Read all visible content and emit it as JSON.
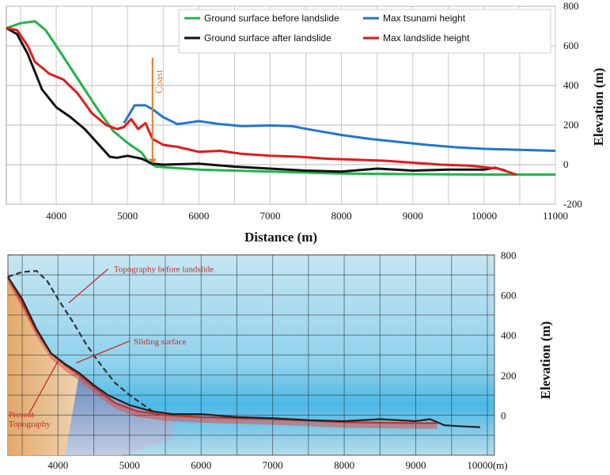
{
  "chart_data": [
    {
      "type": "line",
      "xlabel": "Distance (m)",
      "ylabel": "Elevation (m)",
      "xlim": [
        3300,
        11000
      ],
      "ylim": [
        -200,
        800
      ],
      "x_ticks": [
        4000,
        5000,
        6000,
        7000,
        8000,
        9000,
        10000,
        11000
      ],
      "y_ticks": [
        800,
        600,
        400,
        200,
        0,
        -200
      ],
      "grid": true,
      "legend_position": "top-right",
      "annotations": [
        {
          "text": "Coast",
          "x": 5350
        }
      ],
      "series": [
        {
          "name": "Ground surface before landslide",
          "color": "#22b34a",
          "points": [
            [
              3300,
              690
            ],
            [
              3500,
              715
            ],
            [
              3700,
              725
            ],
            [
              3850,
              680
            ],
            [
              4000,
              600
            ],
            [
              4200,
              490
            ],
            [
              4400,
              380
            ],
            [
              4600,
              270
            ],
            [
              4800,
              170
            ],
            [
              5000,
              110
            ],
            [
              5200,
              60
            ],
            [
              5300,
              10
            ],
            [
              5400,
              -10
            ],
            [
              6000,
              -25
            ],
            [
              7000,
              -35
            ],
            [
              8000,
              -45
            ],
            [
              9000,
              -48
            ],
            [
              10000,
              -50
            ],
            [
              11000,
              -50
            ]
          ]
        },
        {
          "name": "Max tsunami height",
          "color": "#2277c9",
          "points": [
            [
              4950,
              210
            ],
            [
              5100,
              300
            ],
            [
              5250,
              300
            ],
            [
              5350,
              280
            ],
            [
              5500,
              240
            ],
            [
              5700,
              205
            ],
            [
              6000,
              220
            ],
            [
              6300,
              205
            ],
            [
              6600,
              195
            ],
            [
              7000,
              198
            ],
            [
              7300,
              195
            ],
            [
              7600,
              175
            ],
            [
              8000,
              150
            ],
            [
              8400,
              130
            ],
            [
              8800,
              115
            ],
            [
              9200,
              100
            ],
            [
              9600,
              88
            ],
            [
              10000,
              80
            ],
            [
              10500,
              75
            ],
            [
              11000,
              70
            ]
          ]
        },
        {
          "name": "Ground surface after landslide",
          "color": "#111111",
          "points": [
            [
              3300,
              690
            ],
            [
              3450,
              660
            ],
            [
              3600,
              560
            ],
            [
              3800,
              380
            ],
            [
              4000,
              290
            ],
            [
              4200,
              240
            ],
            [
              4400,
              180
            ],
            [
              4600,
              100
            ],
            [
              4750,
              40
            ],
            [
              4850,
              35
            ],
            [
              5000,
              45
            ],
            [
              5200,
              30
            ],
            [
              5350,
              5
            ],
            [
              5500,
              0
            ],
            [
              6000,
              5
            ],
            [
              6500,
              -10
            ],
            [
              7000,
              -20
            ],
            [
              7500,
              -30
            ],
            [
              8000,
              -35
            ],
            [
              8500,
              -20
            ],
            [
              9000,
              -30
            ],
            [
              9500,
              -25
            ],
            [
              10000,
              -25
            ],
            [
              10150,
              -15
            ],
            [
              10300,
              -30
            ]
          ]
        },
        {
          "name": "Max landslide height",
          "color": "#e01b1b",
          "points": [
            [
              3300,
              690
            ],
            [
              3450,
              680
            ],
            [
              3600,
              600
            ],
            [
              3700,
              520
            ],
            [
              3900,
              460
            ],
            [
              4100,
              430
            ],
            [
              4300,
              360
            ],
            [
              4500,
              260
            ],
            [
              4700,
              200
            ],
            [
              4850,
              180
            ],
            [
              4950,
              190
            ],
            [
              5050,
              230
            ],
            [
              5150,
              180
            ],
            [
              5250,
              210
            ],
            [
              5350,
              130
            ],
            [
              5500,
              100
            ],
            [
              5700,
              90
            ],
            [
              6000,
              65
            ],
            [
              6300,
              70
            ],
            [
              6600,
              55
            ],
            [
              7000,
              45
            ],
            [
              7400,
              40
            ],
            [
              7800,
              30
            ],
            [
              8200,
              25
            ],
            [
              8600,
              20
            ],
            [
              9000,
              10
            ],
            [
              9400,
              0
            ],
            [
              9800,
              -5
            ],
            [
              10200,
              -20
            ],
            [
              10450,
              -50
            ]
          ]
        }
      ]
    },
    {
      "type": "line",
      "ylabel": "Elevation (m)",
      "xlim": [
        3300,
        10100
      ],
      "ylim": [
        -200,
        800
      ],
      "x_tick_labels": [
        "4000",
        "5000",
        "6000",
        "7000",
        "8000",
        "9000",
        "10000(m)"
      ],
      "x_tick_values": [
        4000,
        5000,
        6000,
        7000,
        8000,
        9000,
        10000
      ],
      "y_ticks": [
        800,
        600,
        400,
        200,
        0
      ],
      "grid": true,
      "annotations": [
        {
          "text": "Topography before landslide"
        },
        {
          "text": "Sliding surface"
        },
        {
          "text": "Present Topography",
          "lines": [
            "Present",
            "Topography"
          ]
        }
      ],
      "series": [
        {
          "name": "Topography before landslide",
          "color": "#333333",
          "style": "dashed",
          "points": [
            [
              3300,
              690
            ],
            [
              3500,
              715
            ],
            [
              3700,
              720
            ],
            [
              3850,
              670
            ],
            [
              4000,
              580
            ],
            [
              4200,
              470
            ],
            [
              4400,
              350
            ],
            [
              4600,
              250
            ],
            [
              4800,
              160
            ],
            [
              5000,
              100
            ],
            [
              5200,
              50
            ],
            [
              5400,
              0
            ]
          ]
        },
        {
          "name": "Sliding surface",
          "color": "#c0302a",
          "points": [
            [
              3300,
              690
            ],
            [
              3500,
              560
            ],
            [
              3700,
              420
            ],
            [
              3900,
              310
            ],
            [
              4100,
              250
            ],
            [
              4300,
              200
            ],
            [
              4500,
              140
            ],
            [
              4800,
              60
            ],
            [
              5100,
              20
            ],
            [
              5500,
              0
            ],
            [
              6000,
              -10
            ],
            [
              7000,
              -20
            ],
            [
              8000,
              -35
            ],
            [
              9000,
              -40
            ],
            [
              9300,
              -40
            ]
          ]
        },
        {
          "name": "Present Topography",
          "color": "#222222",
          "points": [
            [
              3300,
              690
            ],
            [
              3500,
              580
            ],
            [
              3700,
              430
            ],
            [
              3900,
              310
            ],
            [
              4100,
              255
            ],
            [
              4300,
              210
            ],
            [
              4500,
              150
            ],
            [
              4700,
              100
            ],
            [
              5000,
              50
            ],
            [
              5300,
              20
            ],
            [
              5600,
              5
            ],
            [
              6000,
              5
            ],
            [
              6500,
              -10
            ],
            [
              7000,
              -15
            ],
            [
              7500,
              -25
            ],
            [
              8000,
              -30
            ],
            [
              8500,
              -20
            ],
            [
              9000,
              -30
            ],
            [
              9200,
              -20
            ],
            [
              9400,
              -50
            ],
            [
              9600,
              -55
            ],
            [
              9900,
              -60
            ]
          ]
        }
      ]
    }
  ]
}
